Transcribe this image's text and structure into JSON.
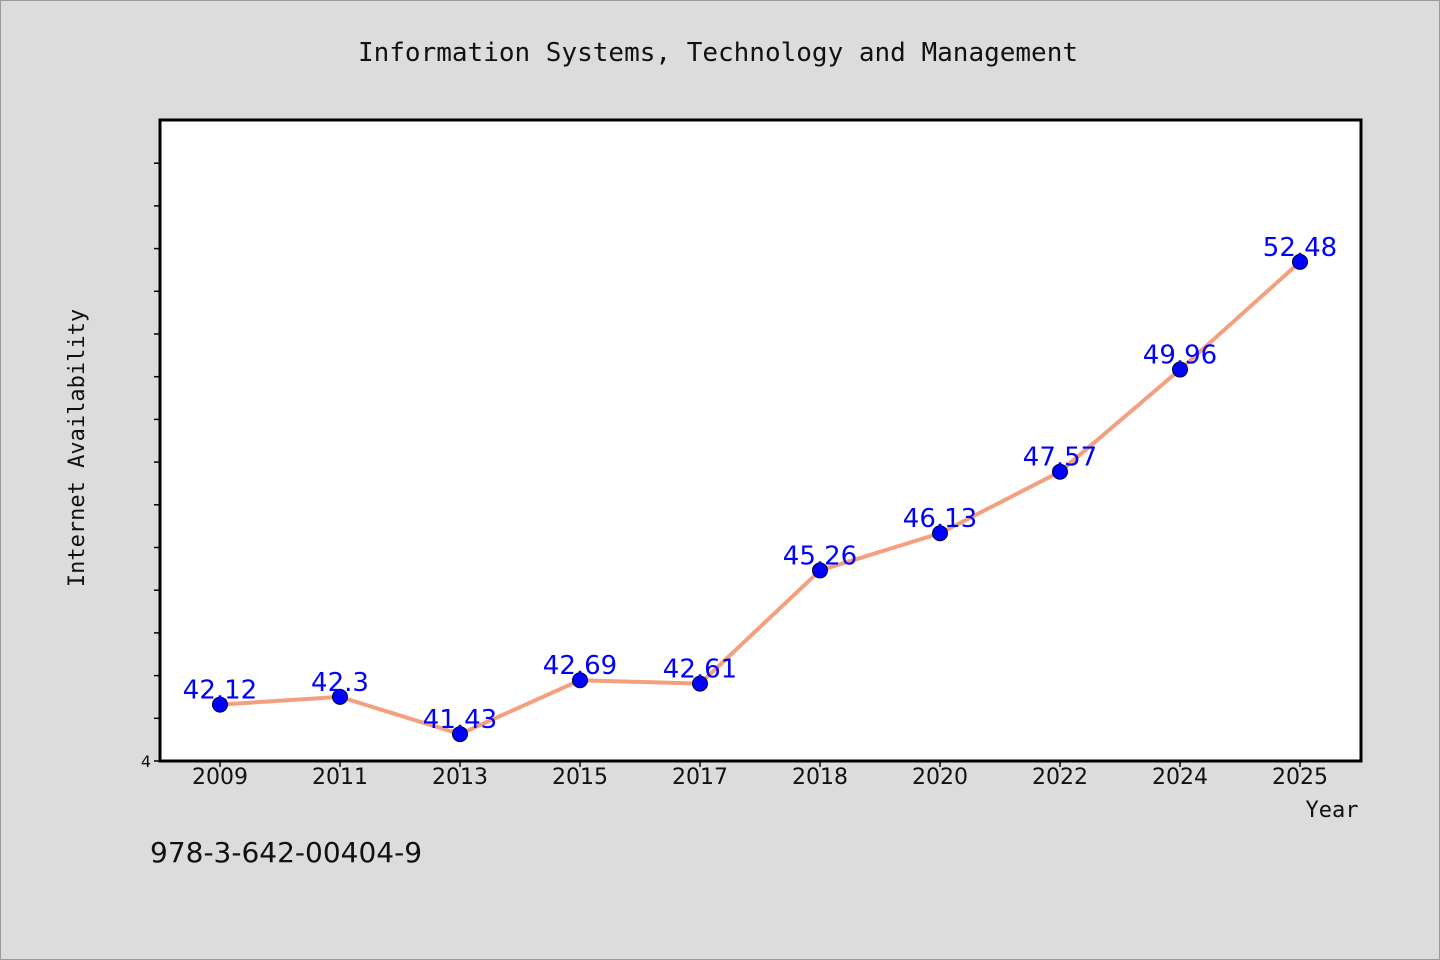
{
  "chart_data": {
    "type": "line",
    "title": "Information Systems, Technology and Management",
    "xlabel": "Year",
    "ylabel": "Internet Availability",
    "categories": [
      "2009",
      "2011",
      "2013",
      "2015",
      "2017",
      "2018",
      "2020",
      "2022",
      "2024",
      "2025"
    ],
    "series": [
      {
        "values": [
          42.12,
          42.3,
          41.43,
          42.69,
          42.61,
          45.26,
          46.13,
          47.57,
          49.96,
          52.48
        ],
        "labels": [
          "42.12",
          "42.3",
          "41.43",
          "42.69",
          "42.61",
          "45.26",
          "46.13",
          "47.57",
          "49.96",
          "52.48"
        ]
      }
    ],
    "ylim": [
      40.8,
      55.8
    ],
    "ytick_label": "4",
    "grid": false,
    "legend": "none",
    "colors": {
      "line": "#f4a07e",
      "marker": "#0000ff",
      "data_label": "#0000ff",
      "plot_background": "#ffffff",
      "figure_background": "#dcdcdc"
    }
  },
  "footnote": "978-3-642-00404-9"
}
